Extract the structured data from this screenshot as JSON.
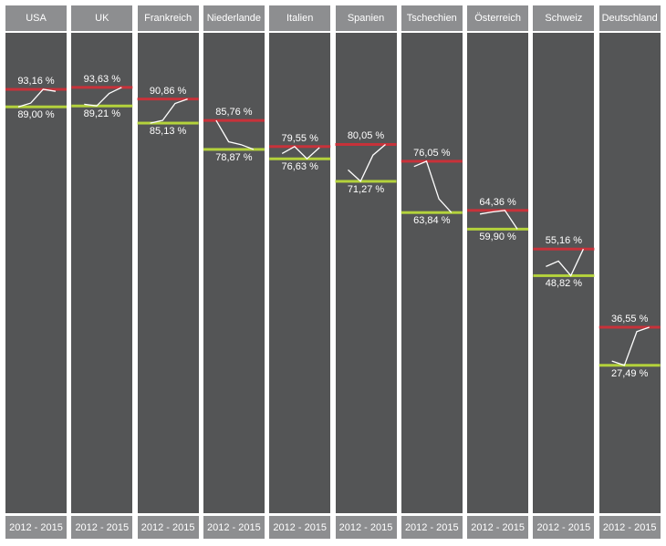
{
  "chart_data": {
    "type": "line",
    "period_label": "2012 - 2015",
    "colors": {
      "max": "#c8323a",
      "min": "#b4d23c",
      "sparkline": "#ffffff",
      "panel": "#545556",
      "header": "#8d8e90"
    },
    "countries": [
      {
        "name": "USA",
        "max": 93.16,
        "max_label": "93,16 %",
        "min": 89.0,
        "min_label": "89,00 %",
        "trend": [
          89.0,
          89.9,
          93.16,
          92.7
        ]
      },
      {
        "name": "UK",
        "max": 93.63,
        "max_label": "93,63 %",
        "min": 89.21,
        "min_label": "89,21 %",
        "trend": [
          89.6,
          89.21,
          92.2,
          93.63
        ]
      },
      {
        "name": "Frankreich",
        "max": 90.86,
        "max_label": "90,86 %",
        "min": 85.13,
        "min_label": "85,13 %",
        "trend": [
          85.13,
          85.8,
          89.8,
          90.86
        ]
      },
      {
        "name": "Niederlande",
        "max": 85.76,
        "max_label": "85,76 %",
        "min": 78.87,
        "min_label": "78,87 %",
        "trend": [
          85.76,
          80.7,
          80.0,
          78.87
        ]
      },
      {
        "name": "Italien",
        "max": 79.55,
        "max_label": "79,55 %",
        "min": 76.63,
        "min_label": "76,63 %",
        "trend": [
          77.9,
          79.55,
          76.63,
          79.3
        ]
      },
      {
        "name": "Spanien",
        "max": 80.05,
        "max_label": "80,05 %",
        "min": 71.27,
        "min_label": "71,27 %",
        "trend": [
          74.0,
          71.27,
          77.5,
          80.05
        ]
      },
      {
        "name": "Tschechien",
        "max": 76.05,
        "max_label": "76,05 %",
        "min": 63.84,
        "min_label": "63,84 %",
        "trend": [
          74.8,
          76.05,
          67.1,
          63.84
        ]
      },
      {
        "name": "Österreich",
        "max": 64.36,
        "max_label": "64,36 %",
        "min": 59.9,
        "min_label": "59,90 %",
        "trend": [
          63.5,
          64.0,
          64.36,
          59.9
        ]
      },
      {
        "name": "Schweiz",
        "max": 55.16,
        "max_label": "55,16 %",
        "min": 48.82,
        "min_label": "48,82 %",
        "trend": [
          51.0,
          52.3,
          48.82,
          55.16
        ]
      },
      {
        "name": "Deutschland",
        "max": 36.55,
        "max_label": "36,55 %",
        "min": 27.49,
        "min_label": "27,49 %",
        "trend": [
          28.5,
          27.49,
          35.5,
          36.55
        ]
      }
    ]
  }
}
